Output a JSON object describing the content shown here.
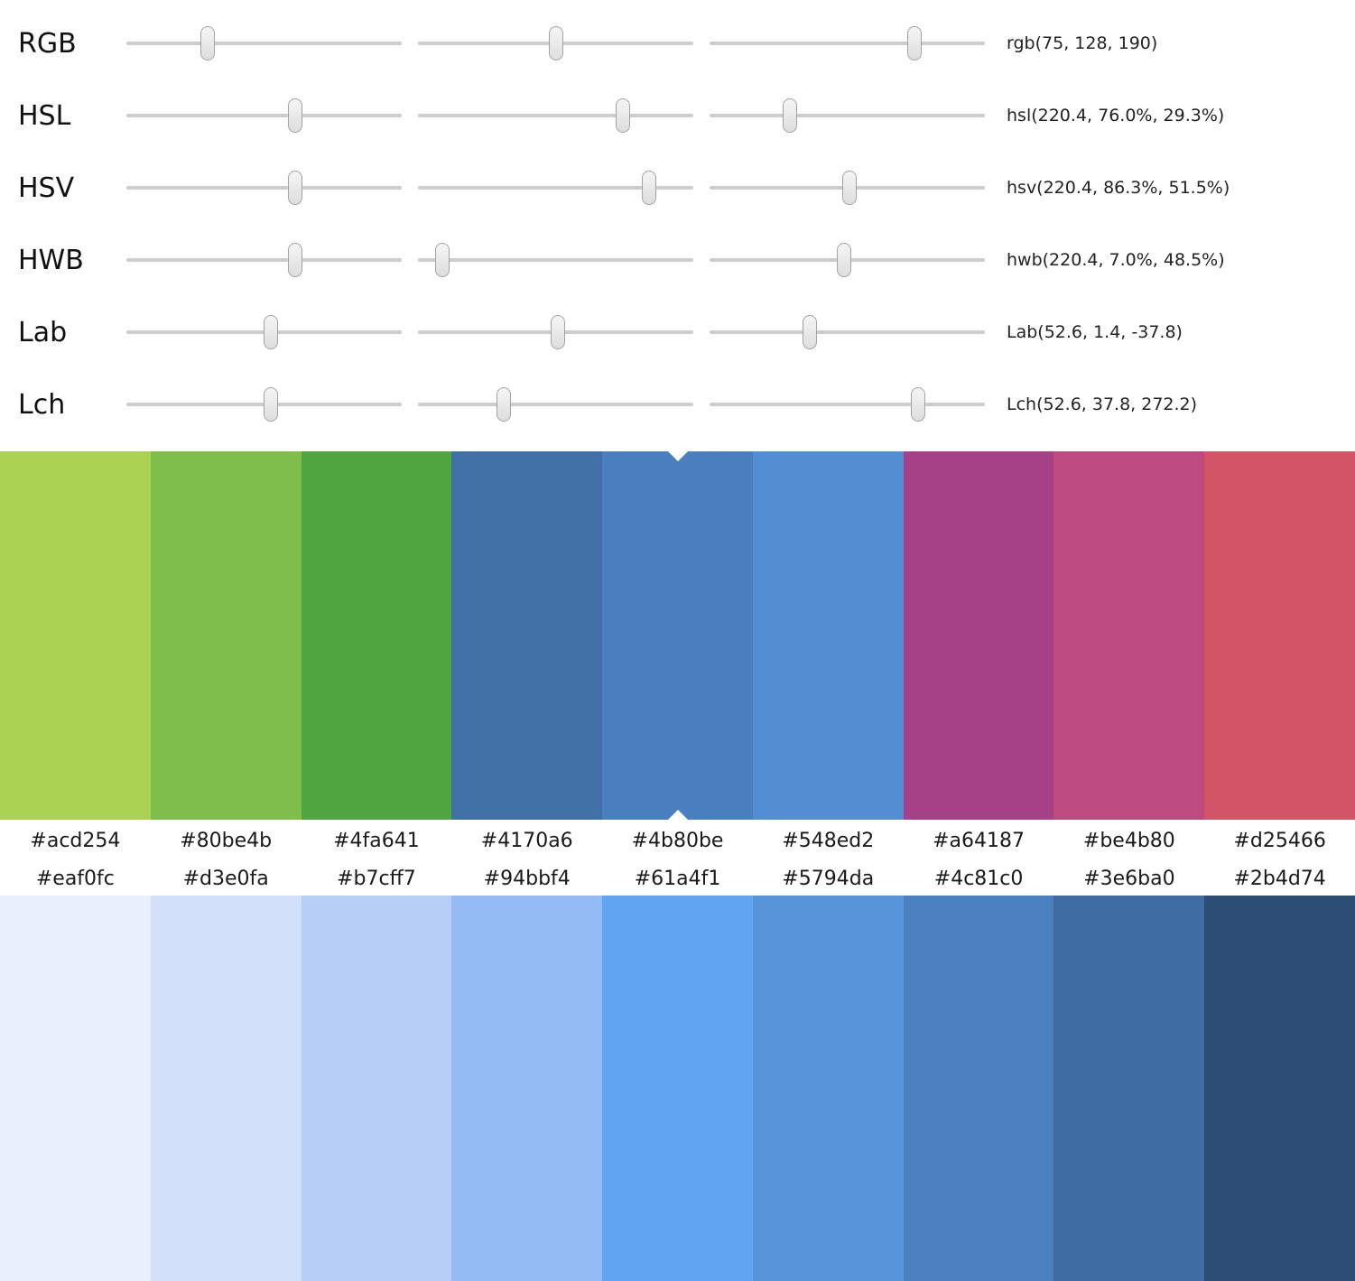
{
  "sliders": {
    "rows": [
      {
        "id": "rgb",
        "label": "RGB",
        "value": "rgb(75, 128, 190)",
        "positions": [
          29.4,
          50.2,
          74.5
        ]
      },
      {
        "id": "hsl",
        "label": "HSL",
        "value": "hsl(220.4, 76.0%, 29.3%)",
        "positions": [
          61.2,
          74.5,
          29.3
        ]
      },
      {
        "id": "hsv",
        "label": "HSV",
        "value": "hsv(220.4, 86.3%, 51.5%)",
        "positions": [
          61.2,
          84.0,
          50.8
        ]
      },
      {
        "id": "hwb",
        "label": "HWB",
        "value": "hwb(220.4, 7.0%, 48.5%)",
        "positions": [
          61.2,
          8.8,
          48.9
        ]
      },
      {
        "id": "lab",
        "label": "Lab",
        "value": "Lab(52.6, 1.4, -37.8)",
        "positions": [
          52.6,
          50.7,
          36.5
        ]
      },
      {
        "id": "lch",
        "label": "Lch",
        "value": "Lch(52.6, 37.8, 272.2)",
        "positions": [
          52.6,
          31.0,
          75.6
        ]
      }
    ]
  },
  "palette_top": {
    "colors": [
      "#acd254",
      "#80be4b",
      "#4fa641",
      "#4170a6",
      "#4b80be",
      "#548ed2",
      "#a64187",
      "#be4b80",
      "#d25466"
    ],
    "selected_index": 4,
    "marker_left_pct": 50
  },
  "palette_bottom": {
    "colors": [
      "#eaf0fc",
      "#d3e0fa",
      "#b7cff7",
      "#94bbf4",
      "#61a4f1",
      "#5794da",
      "#4c81c0",
      "#3e6ba0",
      "#2b4d74"
    ]
  }
}
